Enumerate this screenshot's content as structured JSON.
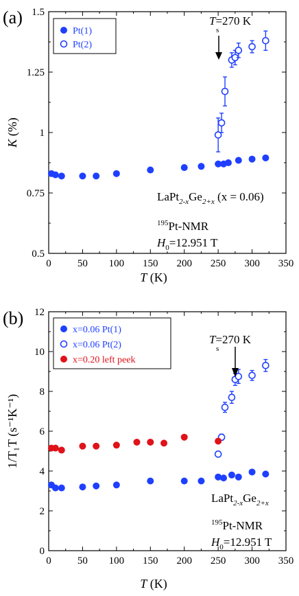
{
  "chart_data": [
    {
      "type": "scatter",
      "panel": "(a)",
      "xlabel_var": "T",
      "xlabel_unit": "(K)",
      "ylabel_var": "K",
      "ylabel_unit": "(%)",
      "xlim": [
        0,
        350
      ],
      "ylim": [
        0.5,
        1.5
      ],
      "xticks": [
        "0",
        "50",
        "100",
        "150",
        "200",
        "250",
        "300",
        "350"
      ],
      "yticks": [
        "0.5",
        "0.75",
        "1",
        "1.25",
        "1.5"
      ],
      "annotation_arrow": {
        "var": "T",
        "sub": "s",
        "text": "=270 K",
        "x": 270,
        "y": 1.3
      },
      "annotations": [
        {
          "type": "formula",
          "text_parts": [
            "LaPt",
            "2-x",
            "Ge",
            "2+x",
            " (x = 0.06)"
          ]
        },
        {
          "type": "nucleus",
          "sup": "195",
          "text": "Pt-NMR"
        },
        {
          "type": "field",
          "var": "H",
          "sub": "0",
          "text": "=12.951 T"
        }
      ],
      "series": [
        {
          "name": "Pt(1)",
          "marker": "filled",
          "color": "#1f3fff",
          "x": [
            4,
            10,
            19,
            50,
            70,
            100,
            150,
            200,
            225,
            250,
            258,
            265,
            280,
            300,
            320
          ],
          "y": [
            0.83,
            0.825,
            0.82,
            0.82,
            0.82,
            0.83,
            0.845,
            0.855,
            0.86,
            0.87,
            0.87,
            0.875,
            0.885,
            0.89,
            0.895
          ],
          "yerr": [
            0,
            0,
            0,
            0,
            0,
            0,
            0,
            0,
            0,
            0,
            0,
            0,
            0,
            0,
            0
          ]
        },
        {
          "name": "Pt(2)",
          "marker": "open",
          "color": "#1f3fff",
          "x": [
            250,
            255,
            260,
            270,
            275,
            280,
            300,
            320
          ],
          "y": [
            0.99,
            1.04,
            1.17,
            1.3,
            1.31,
            1.34,
            1.355,
            1.38
          ],
          "yerr": [
            0.07,
            0.04,
            0.06,
            0.03,
            0.03,
            0.03,
            0.025,
            0.04
          ]
        }
      ]
    },
    {
      "type": "scatter",
      "panel": "(b)",
      "xlabel_var": "T",
      "xlabel_unit": "(K)",
      "ylabel_text": "1/T₁T (s⁻¹K⁻¹)",
      "xlim": [
        0,
        350
      ],
      "ylim": [
        0,
        12
      ],
      "xticks": [
        "0",
        "50",
        "100",
        "150",
        "200",
        "250",
        "300",
        "350"
      ],
      "yticks": [
        "0",
        "2",
        "4",
        "6",
        "8",
        "10",
        "12"
      ],
      "annotation_arrow": {
        "var": "T",
        "sub": "s",
        "text": "=270 K",
        "x": 270,
        "y": 8.5
      },
      "annotations": [
        {
          "type": "formula",
          "text_parts": [
            "LaPt",
            "2-x",
            "Ge",
            "2+x",
            ""
          ]
        },
        {
          "type": "nucleus",
          "sup": "195",
          "text": "Pt-NMR"
        },
        {
          "type": "field",
          "var": "H",
          "sub": "0",
          "text": "=12.951 T"
        }
      ],
      "series": [
        {
          "name": "x=0.06 Pt(1)",
          "marker": "filled",
          "color": "#1f3fff",
          "x": [
            4,
            10,
            19,
            50,
            70,
            100,
            150,
            200,
            225,
            250,
            258,
            270,
            280,
            300,
            320
          ],
          "y": [
            3.3,
            3.15,
            3.15,
            3.2,
            3.25,
            3.3,
            3.5,
            3.5,
            3.5,
            3.7,
            3.65,
            3.8,
            3.7,
            3.95,
            3.85
          ],
          "yerr": [
            0,
            0,
            0,
            0,
            0,
            0,
            0,
            0,
            0,
            0,
            0,
            0,
            0,
            0,
            0
          ]
        },
        {
          "name": "x=0.06 Pt(2)",
          "marker": "open",
          "color": "#1f3fff",
          "x": [
            250,
            255,
            260,
            270,
            275,
            280,
            300,
            320
          ],
          "y": [
            4.85,
            5.7,
            7.2,
            7.7,
            8.6,
            8.75,
            8.8,
            9.3
          ],
          "yerr": [
            0,
            0.15,
            0.25,
            0.3,
            0.3,
            0.35,
            0.25,
            0.3
          ]
        },
        {
          "name": "x=0.20 left peek",
          "marker": "filled",
          "color": "#e0121a",
          "x": [
            4,
            10,
            19,
            50,
            70,
            100,
            130,
            150,
            170,
            200,
            250
          ],
          "y": [
            5.15,
            5.15,
            5.05,
            5.25,
            5.25,
            5.3,
            5.45,
            5.45,
            5.4,
            5.7,
            5.5
          ],
          "yerr": [
            0,
            0,
            0,
            0,
            0,
            0,
            0,
            0,
            0,
            0,
            0
          ]
        }
      ]
    }
  ]
}
